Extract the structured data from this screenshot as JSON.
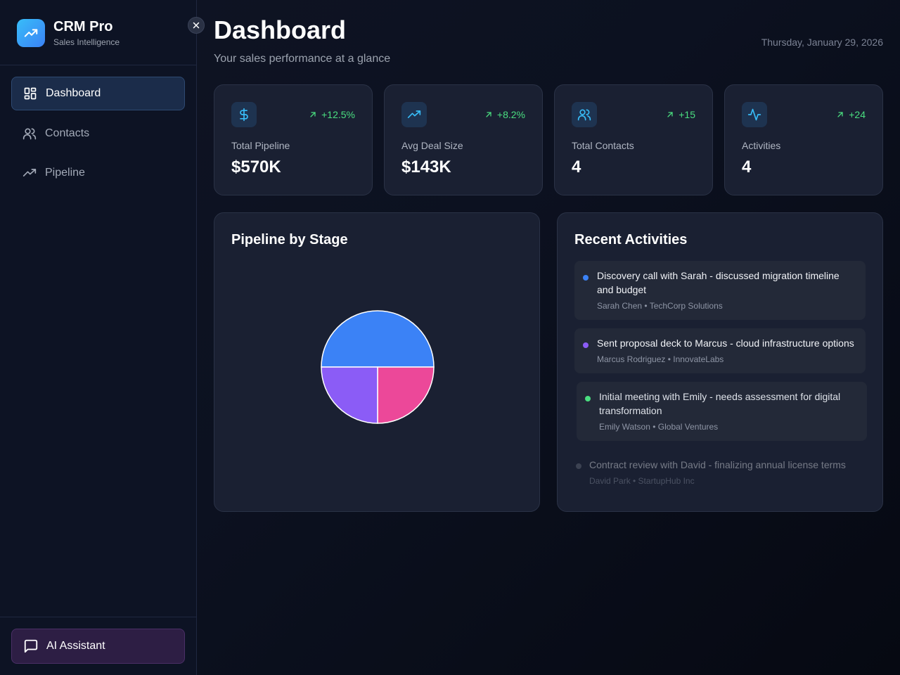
{
  "app": {
    "name": "CRM Pro",
    "tagline": "Sales Intelligence"
  },
  "sidebar": {
    "items": [
      {
        "label": "Dashboard",
        "icon": "dashboard-icon",
        "active": true
      },
      {
        "label": "Contacts",
        "icon": "users-icon",
        "active": false
      },
      {
        "label": "Pipeline",
        "icon": "trending-up-icon",
        "active": false
      }
    ],
    "ai_button": {
      "label": "AI Assistant",
      "icon": "message-square-icon"
    }
  },
  "header": {
    "title": "Dashboard",
    "subtitle": "Your sales performance at a glance",
    "date": "Thursday, January 29, 2026"
  },
  "stats": [
    {
      "label": "Total Pipeline",
      "value": "$570K",
      "change": "+12.5%",
      "icon": "dollar-icon"
    },
    {
      "label": "Avg Deal Size",
      "value": "$143K",
      "change": "+8.2%",
      "icon": "trending-up-icon"
    },
    {
      "label": "Total Contacts",
      "value": "4",
      "change": "+15",
      "icon": "users-icon"
    },
    {
      "label": "Activities",
      "value": "4",
      "change": "+24",
      "icon": "activity-icon"
    }
  ],
  "pipeline_panel": {
    "title": "Pipeline by Stage"
  },
  "chart_data": {
    "type": "pie",
    "title": "Pipeline by Stage",
    "slices": [
      {
        "value": 50,
        "color": "#3b82f6"
      },
      {
        "value": 25,
        "color": "#ec4899"
      },
      {
        "value": 25,
        "color": "#8b5cf6"
      }
    ]
  },
  "activities_panel": {
    "title": "Recent Activities",
    "items": [
      {
        "text": "Discovery call with Sarah - discussed migration timeline and budget",
        "meta": "Sarah Chen • TechCorp Solutions",
        "color": "#3b82f6"
      },
      {
        "text": "Sent proposal deck to Marcus - cloud infrastructure options",
        "meta": "Marcus Rodriguez • InnovateLabs",
        "color": "#8b5cf6"
      },
      {
        "text": "Initial meeting with Emily - needs assessment for digital transformation",
        "meta": "Emily Watson • Global Ventures",
        "color": "#4ade80"
      },
      {
        "text": "Contract review with David - finalizing annual license terms",
        "meta": "David Park • StartupHub Inc",
        "color": "#6b7280"
      }
    ]
  },
  "colors": {
    "accent": "#38bdf8",
    "positive": "#4ade80",
    "ai_button_bg": "#2d1e44"
  }
}
